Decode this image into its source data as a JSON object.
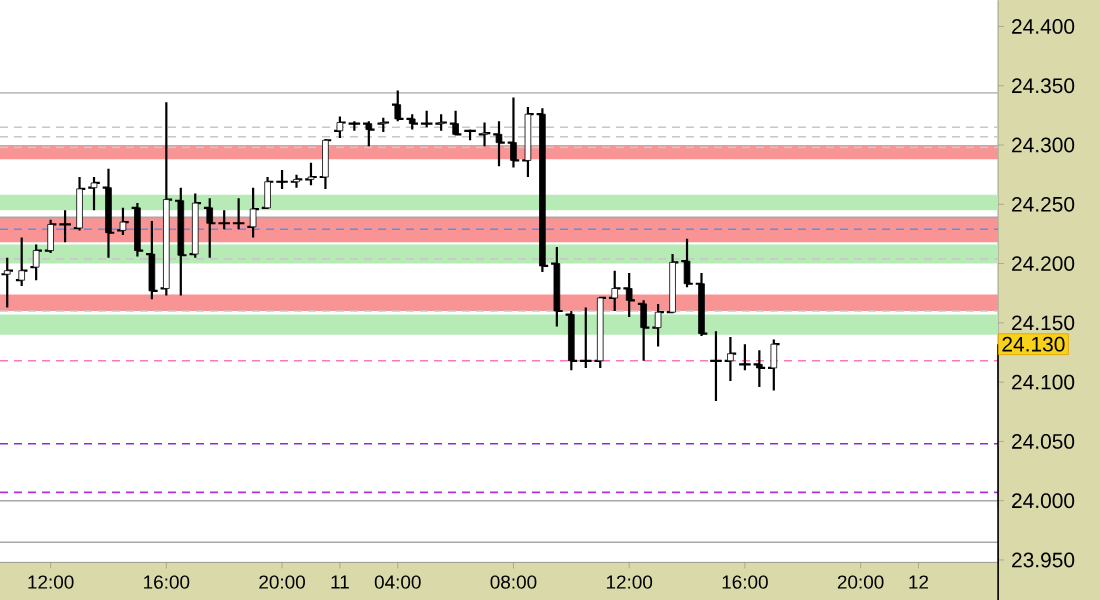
{
  "chart_data": {
    "type": "candlestick",
    "categories": [
      null,
      null,
      null,
      "12:00",
      null,
      null,
      null,
      null,
      null,
      null,
      null,
      "16:00",
      null,
      null,
      null,
      null,
      null,
      null,
      null,
      "20:00",
      null,
      null,
      null,
      "11",
      null,
      null,
      null,
      "04:00",
      null,
      null,
      null,
      null,
      null,
      null,
      null,
      "08:00",
      null,
      null,
      null,
      null,
      null,
      null,
      null,
      "12:00",
      null,
      null,
      null,
      null,
      null,
      null,
      null,
      "16:00",
      null,
      null,
      null,
      null,
      null,
      null,
      null,
      "20:00",
      null,
      null,
      null,
      "12",
      null,
      null,
      null,
      null,
      null
    ],
    "ohlc": [
      [
        24.191,
        24.205,
        24.163,
        24.194
      ],
      [
        24.186,
        24.222,
        24.181,
        24.194
      ],
      [
        24.197,
        24.216,
        24.186,
        24.211
      ],
      [
        24.211,
        24.237,
        24.209,
        24.233
      ],
      [
        24.233,
        24.245,
        24.218,
        24.233
      ],
      [
        24.23,
        24.273,
        24.228,
        24.263
      ],
      [
        24.264,
        24.273,
        24.245,
        24.268
      ],
      [
        24.264,
        24.28,
        24.205,
        24.226
      ],
      [
        24.228,
        24.247,
        24.224,
        24.235
      ],
      [
        24.247,
        24.251,
        24.206,
        24.211
      ],
      [
        24.208,
        24.236,
        24.17,
        24.177
      ],
      [
        24.179,
        24.336,
        24.173,
        24.254
      ],
      [
        24.253,
        24.264,
        24.173,
        24.207
      ],
      [
        24.208,
        24.259,
        24.205,
        24.251
      ],
      [
        24.247,
        24.255,
        24.205,
        24.234
      ],
      [
        24.234,
        24.245,
        24.229,
        24.234
      ],
      [
        24.234,
        24.255,
        24.229,
        24.234
      ],
      [
        24.231,
        24.264,
        24.222,
        24.246
      ],
      [
        24.247,
        24.273,
        24.246,
        24.269
      ],
      [
        24.269,
        24.279,
        24.263,
        24.269
      ],
      [
        24.269,
        24.275,
        24.264,
        24.271
      ],
      [
        24.271,
        24.285,
        24.266,
        24.273
      ],
      [
        24.273,
        24.305,
        24.263,
        24.304
      ],
      [
        24.312,
        24.324,
        24.306,
        24.319
      ],
      [
        24.318,
        24.32,
        24.312,
        24.318
      ],
      [
        24.318,
        24.32,
        24.299,
        24.313
      ],
      [
        24.318,
        24.323,
        24.311,
        24.319
      ],
      [
        24.334,
        24.346,
        24.32,
        24.322
      ],
      [
        24.322,
        24.326,
        24.313,
        24.318
      ],
      [
        24.318,
        24.329,
        24.315,
        24.318
      ],
      [
        24.318,
        24.326,
        24.312,
        24.319
      ],
      [
        24.318,
        24.329,
        24.308,
        24.309
      ],
      [
        24.312,
        24.313,
        24.304,
        24.312
      ],
      [
        24.309,
        24.319,
        24.299,
        24.31
      ],
      [
        24.309,
        24.32,
        24.282,
        24.302
      ],
      [
        24.302,
        24.34,
        24.281,
        24.287
      ],
      [
        24.287,
        24.332,
        24.273,
        24.326
      ],
      [
        24.326,
        24.331,
        24.193,
        24.198
      ],
      [
        24.2,
        24.214,
        24.147,
        24.16
      ],
      [
        24.157,
        24.16,
        24.11,
        24.118
      ],
      [
        24.118,
        24.163,
        24.112,
        24.118
      ],
      [
        24.118,
        24.171,
        24.112,
        24.171
      ],
      [
        24.171,
        24.194,
        24.16,
        24.179
      ],
      [
        24.179,
        24.192,
        24.155,
        24.169
      ],
      [
        24.166,
        24.169,
        24.118,
        24.146
      ],
      [
        24.146,
        24.166,
        24.13,
        24.159
      ],
      [
        24.159,
        24.208,
        24.159,
        24.201
      ],
      [
        24.202,
        24.221,
        24.18,
        24.183
      ],
      [
        24.183,
        24.192,
        24.139,
        24.141
      ],
      [
        24.118,
        24.143,
        24.084,
        24.118
      ],
      [
        24.118,
        24.138,
        24.101,
        24.124
      ],
      [
        24.115,
        24.132,
        24.11,
        24.115
      ],
      [
        24.115,
        24.127,
        24.096,
        24.112
      ],
      [
        24.112,
        24.136,
        24.093,
        24.132
      ],
      null,
      null,
      null,
      null,
      null,
      null,
      null,
      null,
      null,
      null,
      null,
      null,
      null,
      null,
      null
    ],
    "ylim": [
      23.948,
      24.422
    ],
    "yticks": [
      {
        "value": 23.95,
        "label": "23.950"
      },
      {
        "value": 24.0,
        "label": "24.000"
      },
      {
        "value": 24.05,
        "label": "24.050"
      },
      {
        "value": 24.1,
        "label": "24.100"
      },
      {
        "value": 24.15,
        "label": "24.150"
      },
      {
        "value": 24.2,
        "label": "24.200"
      },
      {
        "value": 24.25,
        "label": "24.250"
      },
      {
        "value": 24.3,
        "label": "24.300"
      },
      {
        "value": 24.35,
        "label": "24.350"
      },
      {
        "value": 24.4,
        "label": "24.400"
      }
    ],
    "bands": [
      {
        "axis": "y",
        "from": 24.2,
        "to": 24.216,
        "color": "#b6ebb6"
      },
      {
        "axis": "y",
        "from": 24.14,
        "to": 24.157,
        "color": "#b6ebb6"
      },
      {
        "axis": "y",
        "from": 24.245,
        "to": 24.258,
        "color": "#b6ebb6"
      },
      {
        "axis": "y",
        "from": 24.288,
        "to": 24.3,
        "color": "#f89494"
      },
      {
        "axis": "y",
        "from": 24.218,
        "to": 24.229,
        "color": "#f89494"
      },
      {
        "axis": "y",
        "from": 24.226,
        "to": 24.239,
        "color": "#f89494"
      },
      {
        "axis": "y",
        "from": 24.16,
        "to": 24.174,
        "color": "#f89494"
      }
    ],
    "ref_lines": [
      {
        "axis": "y",
        "value": 24.344,
        "color": "#c0c0c0",
        "line_style": "solid"
      },
      {
        "axis": "y",
        "value": 24.315,
        "color": "#c8c8c8",
        "line_style": "dashed"
      },
      {
        "axis": "y",
        "value": 24.307,
        "color": "#c8c8c8",
        "line_style": "dashed"
      },
      {
        "axis": "y",
        "value": 24.298,
        "color": "#c8c8c8",
        "line_style": "dashed"
      },
      {
        "axis": "y",
        "value": 24.239,
        "color": "#a8a8a8",
        "line_style": "solid"
      },
      {
        "axis": "y",
        "value": 24.229,
        "color": "#5b8ef0",
        "line_style": "dashed"
      },
      {
        "axis": "y",
        "value": 24.204,
        "color": "#c8c8c8",
        "line_style": "dashed"
      },
      {
        "axis": "y",
        "value": 24.16,
        "color": "#c8c8c8",
        "line_style": "dashed"
      },
      {
        "axis": "y",
        "value": 24.118,
        "color": "#ff77bb",
        "line_style": "dashed"
      },
      {
        "axis": "y",
        "value": 24.048,
        "color": "#8a2be2",
        "line_style": "dashed"
      },
      {
        "axis": "y",
        "value": 24.007,
        "color": "#b030d8",
        "line_style": "dashed"
      },
      {
        "axis": "y",
        "value": 24.0,
        "color": "#a8a8a8",
        "line_style": "solid"
      },
      {
        "axis": "y",
        "value": 23.965,
        "color": "#a8a8a8",
        "line_style": "solid"
      }
    ],
    "annotations": [
      "24.130"
    ]
  }
}
